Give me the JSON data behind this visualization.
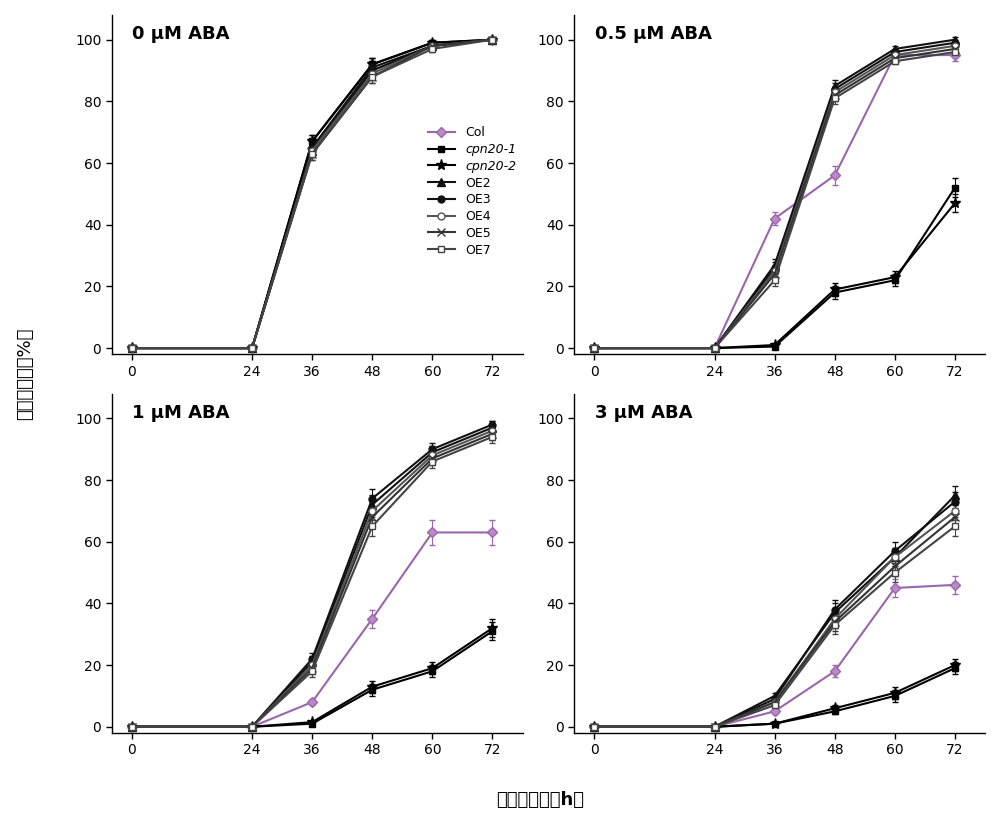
{
  "x": [
    0,
    24,
    36,
    48,
    60,
    72
  ],
  "subplot_titles": [
    "0 μM ABA",
    "0.5 μM ABA",
    "1 μM ABA",
    "3 μM ABA"
  ],
  "ylabel": "种子萌发率（%）",
  "xlabel": "层积后时间（h）",
  "series": [
    {
      "label": "Col",
      "color": "#9966aa",
      "marker": "D",
      "markersize": 5,
      "linewidth": 1.5,
      "linestyle": "-",
      "markerfacecolor": "#bb88cc",
      "data": [
        [
          0,
          0,
          65,
          90,
          98,
          100
        ],
        [
          0,
          0,
          42,
          56,
          95,
          95
        ],
        [
          0,
          0,
          8,
          35,
          63,
          63
        ],
        [
          0,
          0,
          5,
          18,
          45,
          46
        ]
      ],
      "yerr": [
        [
          0.2,
          0.2,
          2,
          2,
          1,
          0.5
        ],
        [
          0.2,
          0.2,
          2,
          3,
          2,
          2
        ],
        [
          0.2,
          0.2,
          1,
          3,
          4,
          4
        ],
        [
          0.2,
          0.2,
          1,
          2,
          3,
          3
        ]
      ]
    },
    {
      "label": "cpn20-1",
      "color": "#000000",
      "marker": "s",
      "markersize": 5,
      "linewidth": 1.5,
      "linestyle": "-",
      "markerfacecolor": "#000000",
      "data": [
        [
          0,
          0,
          67,
          92,
          99,
          100
        ],
        [
          0,
          0,
          0.5,
          18,
          22,
          52
        ],
        [
          0,
          0,
          1,
          12,
          18,
          31
        ],
        [
          0,
          0,
          1,
          5,
          10,
          19
        ]
      ],
      "yerr": [
        [
          0.2,
          0.2,
          2,
          2,
          1,
          0.5
        ],
        [
          0.2,
          0.2,
          0.5,
          2,
          2,
          3
        ],
        [
          0.2,
          0.2,
          0.5,
          2,
          2,
          3
        ],
        [
          0.2,
          0.2,
          0.5,
          1,
          2,
          2
        ]
      ]
    },
    {
      "label": "cpn20-2",
      "color": "#000000",
      "marker": "*",
      "markersize": 8,
      "linewidth": 1.5,
      "linestyle": "-",
      "markerfacecolor": "#000000",
      "data": [
        [
          0,
          0,
          67,
          92,
          99,
          100
        ],
        [
          0,
          0,
          1,
          19,
          23,
          47
        ],
        [
          0,
          0,
          1.5,
          13,
          19,
          32
        ],
        [
          0,
          0,
          1,
          6,
          11,
          20
        ]
      ],
      "yerr": [
        [
          0.2,
          0.2,
          2,
          2,
          1,
          0.5
        ],
        [
          0.2,
          0.2,
          0.5,
          2,
          2,
          3
        ],
        [
          0.2,
          0.2,
          0.5,
          2,
          2,
          3
        ],
        [
          0.2,
          0.2,
          0.5,
          1,
          2,
          2
        ]
      ]
    },
    {
      "label": "OE2",
      "color": "#111111",
      "marker": "^",
      "markersize": 6,
      "linewidth": 1.5,
      "linestyle": "-",
      "markerfacecolor": "#111111",
      "data": [
        [
          0,
          0,
          64,
          90,
          98,
          100
        ],
        [
          0,
          0,
          27,
          85,
          97,
          100
        ],
        [
          0,
          0,
          21,
          72,
          89,
          97
        ],
        [
          0,
          0,
          10,
          37,
          55,
          75
        ]
      ],
      "yerr": [
        [
          0.2,
          0.2,
          2,
          2,
          1,
          0.5
        ],
        [
          0.2,
          0.2,
          2,
          2,
          1,
          1
        ],
        [
          0.2,
          0.2,
          2,
          3,
          2,
          2
        ],
        [
          0.2,
          0.2,
          1,
          3,
          3,
          3
        ]
      ]
    },
    {
      "label": "OE3",
      "color": "#111111",
      "marker": "o",
      "markersize": 5,
      "linewidth": 1.5,
      "linestyle": "-",
      "markerfacecolor": "#111111",
      "data": [
        [
          0,
          0,
          65,
          91,
          98,
          100
        ],
        [
          0,
          0,
          26,
          84,
          96,
          99
        ],
        [
          0,
          0,
          22,
          74,
          90,
          98
        ],
        [
          0,
          0,
          9,
          38,
          57,
          73
        ]
      ],
      "yerr": [
        [
          0.2,
          0.2,
          2,
          2,
          1,
          0.5
        ],
        [
          0.2,
          0.2,
          2,
          2,
          1,
          1
        ],
        [
          0.2,
          0.2,
          2,
          3,
          2,
          1
        ],
        [
          0.2,
          0.2,
          1,
          3,
          3,
          3
        ]
      ]
    },
    {
      "label": "OE4",
      "color": "#555555",
      "marker": "o",
      "markersize": 5,
      "linewidth": 1.5,
      "linestyle": "-",
      "markerfacecolor": "white",
      "data": [
        [
          0,
          0,
          64,
          89,
          98,
          100
        ],
        [
          0,
          0,
          25,
          83,
          95,
          98
        ],
        [
          0,
          0,
          20,
          70,
          88,
          96
        ],
        [
          0,
          0,
          8,
          35,
          55,
          70
        ]
      ],
      "yerr": [
        [
          0.2,
          0.2,
          2,
          2,
          1,
          0.5
        ],
        [
          0.2,
          0.2,
          2,
          2,
          1,
          1
        ],
        [
          0.2,
          0.2,
          2,
          3,
          2,
          2
        ],
        [
          0.2,
          0.2,
          1,
          3,
          3,
          3
        ]
      ]
    },
    {
      "label": "OE5",
      "color": "#333333",
      "marker": "x",
      "markersize": 6,
      "linewidth": 1.5,
      "linestyle": "-",
      "markerfacecolor": "#333333",
      "data": [
        [
          0,
          0,
          63,
          88,
          98,
          100
        ],
        [
          0,
          0,
          24,
          82,
          94,
          97
        ],
        [
          0,
          0,
          19,
          68,
          87,
          95
        ],
        [
          0,
          0,
          8,
          34,
          52,
          68
        ]
      ],
      "yerr": [
        [
          0.2,
          0.2,
          2,
          2,
          1,
          0.5
        ],
        [
          0.2,
          0.2,
          2,
          2,
          1,
          1
        ],
        [
          0.2,
          0.2,
          2,
          3,
          2,
          2
        ],
        [
          0.2,
          0.2,
          1,
          3,
          3,
          3
        ]
      ]
    },
    {
      "label": "OE7",
      "color": "#444444",
      "marker": "s",
      "markersize": 5,
      "linewidth": 1.5,
      "linestyle": "-",
      "markerfacecolor": "white",
      "data": [
        [
          0,
          0,
          63,
          88,
          97,
          100
        ],
        [
          0,
          0,
          22,
          81,
          93,
          96
        ],
        [
          0,
          0,
          18,
          65,
          86,
          94
        ],
        [
          0,
          0,
          7,
          33,
          50,
          65
        ]
      ],
      "yerr": [
        [
          0.2,
          0.2,
          2,
          2,
          1,
          0.5
        ],
        [
          0.2,
          0.2,
          2,
          2,
          1,
          1
        ],
        [
          0.2,
          0.2,
          2,
          3,
          2,
          2
        ],
        [
          0.2,
          0.2,
          1,
          3,
          3,
          3
        ]
      ]
    }
  ],
  "ylim": [
    -2,
    108
  ],
  "yticks": [
    0,
    20,
    40,
    60,
    80,
    100
  ],
  "background_color": "#ffffff"
}
